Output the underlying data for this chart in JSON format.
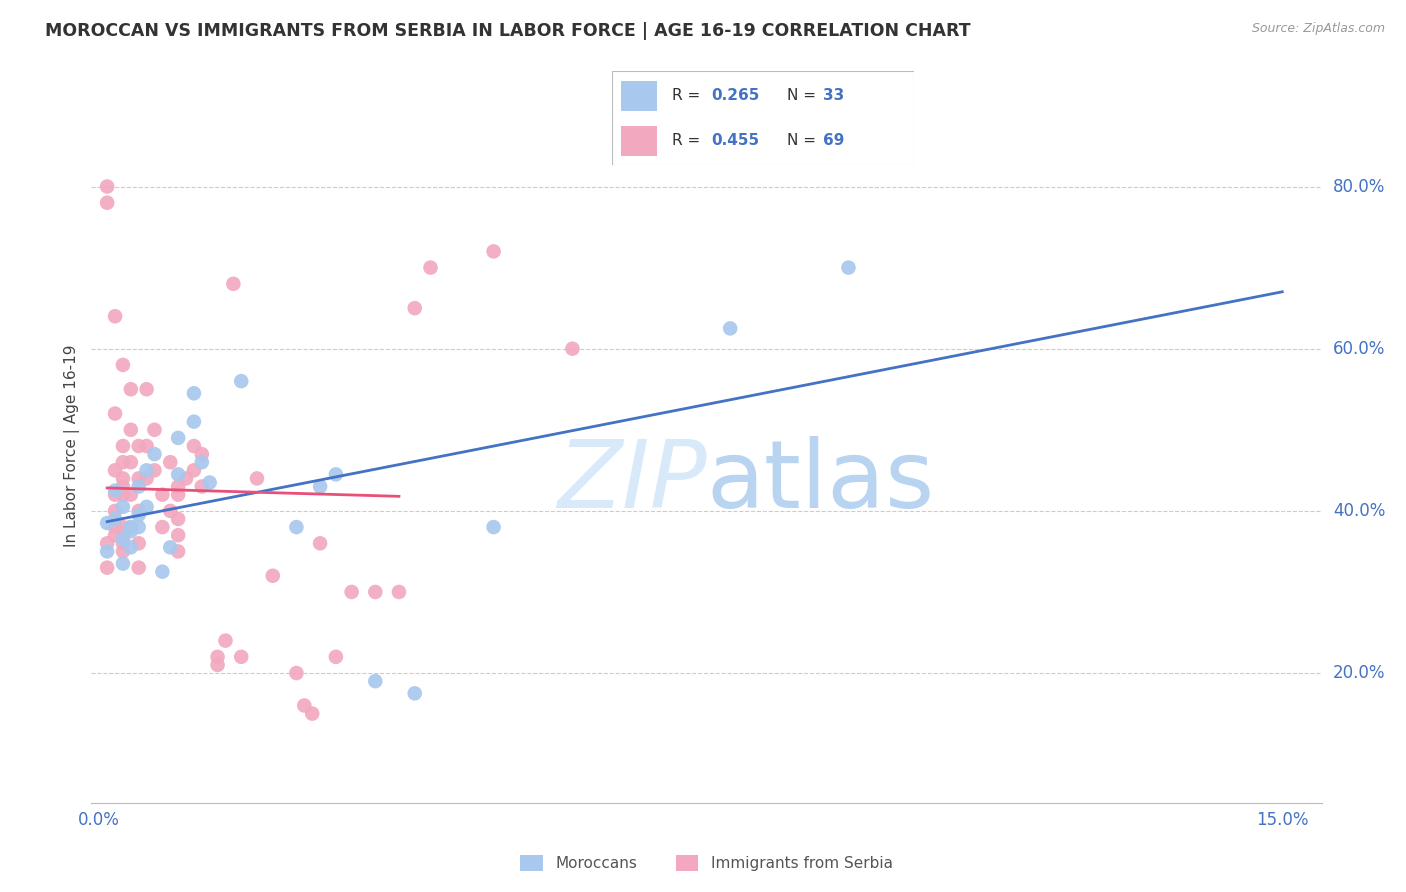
{
  "title": "MOROCCAN VS IMMIGRANTS FROM SERBIA IN LABOR FORCE | AGE 16-19 CORRELATION CHART",
  "source": "Source: ZipAtlas.com",
  "ylabel": "In Labor Force | Age 16-19",
  "yaxis_labels": [
    "20.0%",
    "40.0%",
    "60.0%",
    "80.0%"
  ],
  "yaxis_values": [
    0.2,
    0.4,
    0.6,
    0.8
  ],
  "xlim": [
    -0.001,
    0.155
  ],
  "ylim": [
    0.04,
    0.92
  ],
  "legend1_r": "R = 0.265",
  "legend1_n": "N = 33",
  "legend2_r": "R = 0.455",
  "legend2_n": "N = 69",
  "color_moroccan": "#A8C8EE",
  "color_serbia": "#F2A8BE",
  "color_line_moroccan": "#4472C4",
  "color_line_serbia": "#E8507A",
  "legend_text_color": "#4472C4",
  "legend_label_color": "#333333",
  "moroccan_x": [
    0.001,
    0.001,
    0.002,
    0.002,
    0.003,
    0.003,
    0.003,
    0.004,
    0.004,
    0.004,
    0.005,
    0.005,
    0.005,
    0.006,
    0.006,
    0.007,
    0.008,
    0.009,
    0.01,
    0.01,
    0.012,
    0.012,
    0.013,
    0.014,
    0.018,
    0.025,
    0.028,
    0.03,
    0.035,
    0.04,
    0.05,
    0.08,
    0.095
  ],
  "moroccan_y": [
    0.385,
    0.35,
    0.39,
    0.425,
    0.335,
    0.405,
    0.365,
    0.375,
    0.38,
    0.355,
    0.395,
    0.43,
    0.38,
    0.405,
    0.45,
    0.47,
    0.325,
    0.355,
    0.49,
    0.445,
    0.51,
    0.545,
    0.46,
    0.435,
    0.56,
    0.38,
    0.43,
    0.445,
    0.19,
    0.175,
    0.38,
    0.625,
    0.7
  ],
  "serbia_x": [
    0.001,
    0.001,
    0.001,
    0.001,
    0.002,
    0.002,
    0.002,
    0.002,
    0.002,
    0.002,
    0.002,
    0.003,
    0.003,
    0.003,
    0.003,
    0.003,
    0.003,
    0.003,
    0.003,
    0.003,
    0.003,
    0.004,
    0.004,
    0.004,
    0.004,
    0.004,
    0.005,
    0.005,
    0.005,
    0.005,
    0.005,
    0.006,
    0.006,
    0.006,
    0.007,
    0.007,
    0.008,
    0.008,
    0.009,
    0.009,
    0.01,
    0.01,
    0.01,
    0.01,
    0.01,
    0.011,
    0.012,
    0.012,
    0.013,
    0.013,
    0.015,
    0.015,
    0.016,
    0.017,
    0.018,
    0.02,
    0.022,
    0.025,
    0.026,
    0.027,
    0.028,
    0.03,
    0.032,
    0.035,
    0.038,
    0.04,
    0.042,
    0.05,
    0.06
  ],
  "serbia_y": [
    0.8,
    0.78,
    0.36,
    0.33,
    0.64,
    0.52,
    0.45,
    0.42,
    0.4,
    0.38,
    0.37,
    0.58,
    0.48,
    0.46,
    0.44,
    0.43,
    0.42,
    0.38,
    0.37,
    0.36,
    0.35,
    0.55,
    0.5,
    0.46,
    0.42,
    0.38,
    0.48,
    0.44,
    0.4,
    0.36,
    0.33,
    0.55,
    0.48,
    0.44,
    0.5,
    0.45,
    0.42,
    0.38,
    0.46,
    0.4,
    0.43,
    0.42,
    0.39,
    0.37,
    0.35,
    0.44,
    0.48,
    0.45,
    0.47,
    0.43,
    0.22,
    0.21,
    0.24,
    0.68,
    0.22,
    0.44,
    0.32,
    0.2,
    0.16,
    0.15,
    0.36,
    0.22,
    0.3,
    0.3,
    0.3,
    0.65,
    0.7,
    0.72,
    0.6
  ],
  "serbia_line_x": [
    0.001,
    0.038
  ],
  "moroccan_line_x": [
    0.001,
    0.15
  ]
}
